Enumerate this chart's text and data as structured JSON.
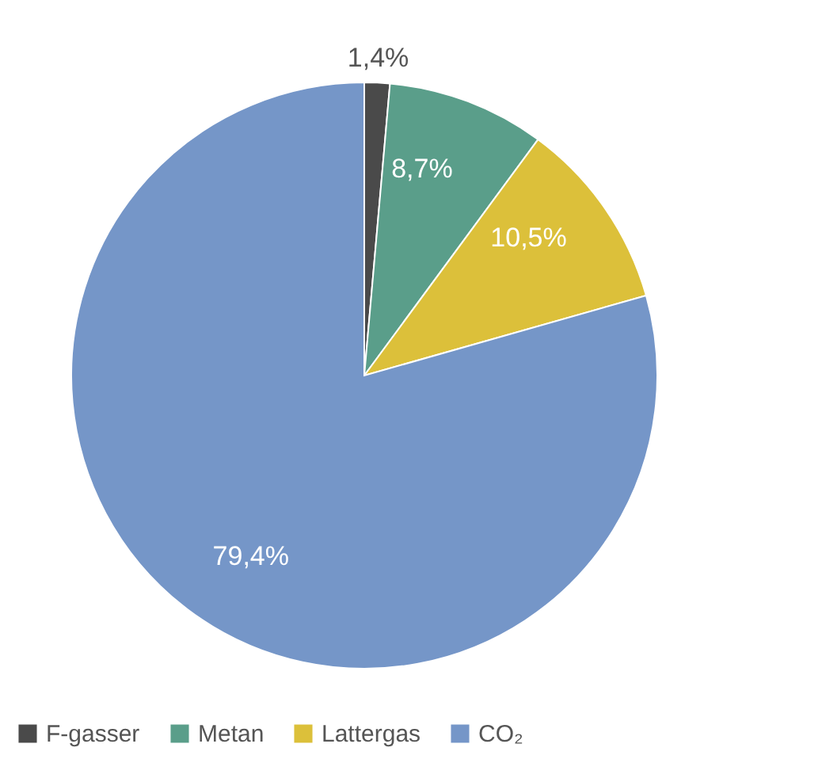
{
  "chart_data": {
    "type": "pie",
    "categories": [
      "F-gasser",
      "Metan",
      "Lattergas",
      "CO₂"
    ],
    "values": [
      1.4,
      8.7,
      10.5,
      79.4
    ],
    "colors": [
      "#4a4a4a",
      "#5a9e8a",
      "#dcc03a",
      "#7596c8"
    ],
    "value_labels": [
      "1,4%",
      "8,7%",
      "10,5%",
      "79,4%"
    ],
    "legend": "bottom"
  }
}
